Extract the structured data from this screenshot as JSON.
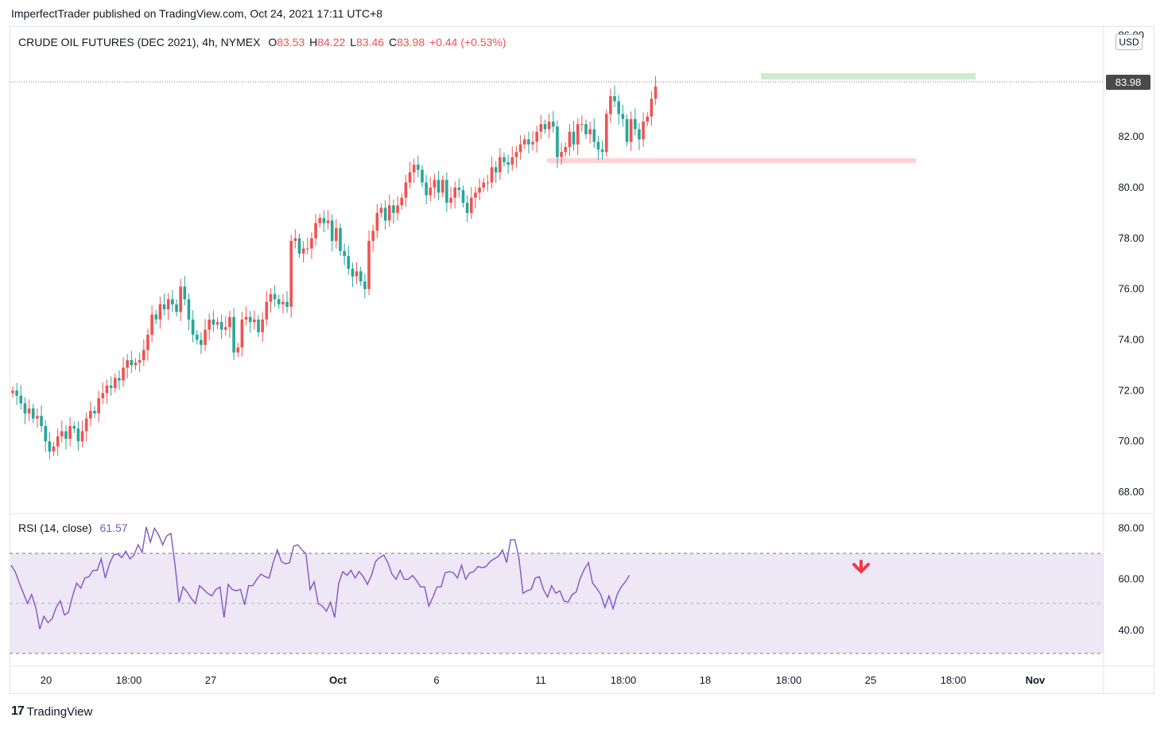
{
  "attribution": "ImperfectTrader published on TradingView.com, Oct 24, 2021 17:11 UTC+8",
  "symbol": "CRUDE OIL FUTURES (DEC 2021), 4h, NYMEX",
  "ohlc": {
    "o_label": "O",
    "o": "83.53",
    "h_label": "H",
    "h": "84.22",
    "l_label": "L",
    "l": "83.46",
    "c_label": "C",
    "c": "83.98",
    "change": "+0.44 (+0.53%)"
  },
  "currency": "USD",
  "last_price_tag": "83.98",
  "footer_brand": "TradingView",
  "footer_logo": "tradingview-logo",
  "colors": {
    "up": "#ef5350",
    "down": "#26a69a",
    "rsi_line": "#7e57c2",
    "rsi_band": "#ede7f6",
    "resistance": "#c8e6c9",
    "support": "#ffcdd2",
    "arrow": "#f23645"
  },
  "chart_data": [
    {
      "type": "candlestick",
      "title": "CRUDE OIL FUTURES (DEC 2021), 4h, NYMEX",
      "price_axis_ticks": [
        "86.00",
        "82.00",
        "80.00",
        "78.00",
        "76.00",
        "74.00",
        "72.00",
        "70.00",
        "68.00"
      ],
      "ylim": [
        67.5,
        86.2
      ],
      "time_axis_ticks": [
        "20",
        "18:00",
        "27",
        "Oct",
        "6",
        "11",
        "18:00",
        "18",
        "18:00",
        "25",
        "18:00",
        "Nov"
      ],
      "closes": [
        72.0,
        71.8,
        71.5,
        71.1,
        71.3,
        70.9,
        71.0,
        70.6,
        70.0,
        69.6,
        69.8,
        70.2,
        70.4,
        70.1,
        70.6,
        70.5,
        70.0,
        70.4,
        70.9,
        71.2,
        71.1,
        71.7,
        71.9,
        72.2,
        72.1,
        72.5,
        72.4,
        72.9,
        73.2,
        73.0,
        73.1,
        73.2,
        73.6,
        74.2,
        75.0,
        74.8,
        75.4,
        75.2,
        75.6,
        75.4,
        75.1,
        76.1,
        75.6,
        74.8,
        74.2,
        74.0,
        73.8,
        74.4,
        74.8,
        74.6,
        74.7,
        74.4,
        74.5,
        74.9,
        73.5,
        73.7,
        74.8,
        74.9,
        74.7,
        74.8,
        74.3,
        74.8,
        75.5,
        75.8,
        75.6,
        75.4,
        75.5,
        75.3,
        77.9,
        78.0,
        77.4,
        77.6,
        77.6,
        78.0,
        78.6,
        78.8,
        78.6,
        78.7,
        77.9,
        78.4,
        77.5,
        77.3,
        76.8,
        76.5,
        76.7,
        76.3,
        76.0,
        77.9,
        78.3,
        79.0,
        79.2,
        78.7,
        79.3,
        79.0,
        79.3,
        79.6,
        80.2,
        80.6,
        80.9,
        80.7,
        80.2,
        79.7,
        80.0,
        80.3,
        79.8,
        80.3,
        79.4,
        79.6,
        80.0,
        79.9,
        79.4,
        79.0,
        79.6,
        79.8,
        80.0,
        80.2,
        80.2,
        80.8,
        80.6,
        81.2,
        81.0,
        80.9,
        81.2,
        81.4,
        81.7,
        81.9,
        81.7,
        81.8,
        82.2,
        82.5,
        82.3,
        82.6,
        82.4,
        81.2,
        81.4,
        81.6,
        82.2,
        81.7,
        82.5,
        82.5,
        82.1,
        82.3,
        81.8,
        81.5,
        81.4,
        82.9,
        83.6,
        83.4,
        82.9,
        82.7,
        81.8,
        82.7,
        82.3,
        81.9,
        82.6,
        82.8,
        83.5,
        83.98
      ],
      "support_level": 81.0,
      "resistance_level": 84.25,
      "last_price": 83.98
    },
    {
      "type": "line",
      "title": "RSI (14, close)",
      "series": [
        {
          "name": "RSI (14, close)",
          "last_value": "61.57"
        }
      ],
      "axis_ticks": [
        "80.00",
        "60.00",
        "40.00"
      ],
      "ylim": [
        27.5,
        84.5
      ],
      "band": [
        30,
        70
      ],
      "midline": 50,
      "values": [
        65.5,
        63.0,
        58.5,
        54.5,
        50.5,
        54.0,
        49.0,
        40.5,
        45.5,
        43.0,
        44.5,
        49.0,
        51.5,
        46.0,
        47.0,
        53.5,
        58.5,
        56.5,
        60.5,
        61.0,
        63.5,
        63.5,
        68.0,
        60.5,
        66.0,
        69.5,
        70.0,
        68.5,
        71.0,
        68.0,
        69.5,
        73.5,
        70.5,
        80.5,
        74.5,
        80.0,
        77.5,
        73.5,
        77.0,
        78.0,
        66.0,
        51.0,
        57.0,
        55.0,
        52.5,
        50.5,
        57.5,
        56.0,
        54.5,
        53.5,
        56.0,
        57.0,
        45.0,
        58.0,
        56.0,
        55.5,
        56.0,
        50.0,
        57.5,
        57.5,
        60.0,
        62.0,
        61.0,
        60.5,
        66.5,
        71.5,
        67.0,
        66.0,
        66.5,
        73.0,
        73.5,
        71.5,
        70.0,
        56.0,
        59.0,
        50.5,
        49.5,
        47.5,
        51.0,
        45.0,
        58.5,
        63.0,
        61.5,
        63.5,
        60.5,
        63.0,
        61.0,
        58.0,
        61.5,
        67.0,
        68.5,
        69.5,
        66.5,
        62.0,
        60.0,
        63.5,
        60.0,
        60.0,
        61.5,
        59.5,
        57.0,
        57.0,
        49.5,
        53.0,
        57.0,
        57.0,
        62.5,
        63.0,
        62.5,
        60.5,
        65.5,
        60.0,
        62.5,
        63.0,
        65.0,
        64.5,
        65.0,
        67.0,
        68.0,
        69.0,
        71.5,
        66.5,
        75.5,
        75.5,
        68.5,
        54.5,
        55.5,
        56.0,
        60.5,
        61.0,
        56.0,
        53.0,
        57.5,
        54.5,
        55.5,
        51.5,
        51.0,
        54.0,
        55.0,
        60.5,
        64.0,
        66.5,
        58.5,
        56.5,
        54.0,
        49.0,
        53.5,
        48.5,
        54.0,
        57.0,
        59.0,
        61.57
      ]
    }
  ]
}
